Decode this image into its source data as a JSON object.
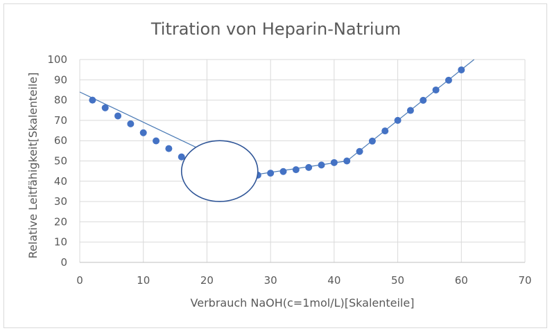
{
  "chart_data": {
    "type": "scatter",
    "title": "Titration von Heparin-Natrium",
    "xlabel": "Verbrauch NaOH(c=1mol/L)[Skalenteile]",
    "ylabel": "Relative Leitfähigkeit[Skalenteile]",
    "xlim": [
      0,
      70
    ],
    "ylim": [
      0,
      100
    ],
    "x_ticks": [
      "0",
      "10",
      "20",
      "30",
      "40",
      "50",
      "60",
      "70"
    ],
    "y_ticks": [
      "0",
      "10",
      "20",
      "30",
      "40",
      "50",
      "60",
      "70",
      "80",
      "90",
      "100"
    ],
    "grid": true,
    "legend": "none",
    "series": [
      {
        "points": [
          [
            2,
            80
          ],
          [
            4,
            76.2
          ],
          [
            6,
            72.2
          ],
          [
            8,
            68.3
          ],
          [
            10,
            63.9
          ],
          [
            12,
            59.9
          ],
          [
            14,
            56.1
          ],
          [
            16,
            52
          ],
          [
            28,
            43
          ],
          [
            30,
            44
          ],
          [
            32,
            44.8
          ],
          [
            34,
            45.7
          ],
          [
            36,
            46.8
          ],
          [
            38,
            48
          ],
          [
            40,
            49.2
          ],
          [
            42,
            50
          ],
          [
            44,
            54.7
          ],
          [
            46,
            59.8
          ],
          [
            48,
            64.8
          ],
          [
            50,
            70
          ],
          [
            52,
            74.9
          ],
          [
            54,
            79.9
          ],
          [
            56,
            85
          ],
          [
            58,
            89.8
          ],
          [
            60,
            94.9
          ]
        ],
        "color": "#4472c4"
      }
    ],
    "trend_segments": [
      [
        [
          0,
          84
        ],
        [
          26.5,
          44.5
        ]
      ],
      [
        [
          27.5,
          43.2
        ],
        [
          42,
          50
        ]
      ],
      [
        [
          42,
          50
        ],
        [
          62,
          100
        ]
      ]
    ],
    "annotation": {
      "shape": "ellipse",
      "center": [
        22,
        45
      ],
      "radii": [
        6,
        15
      ],
      "stroke": "#2f5597"
    }
  }
}
